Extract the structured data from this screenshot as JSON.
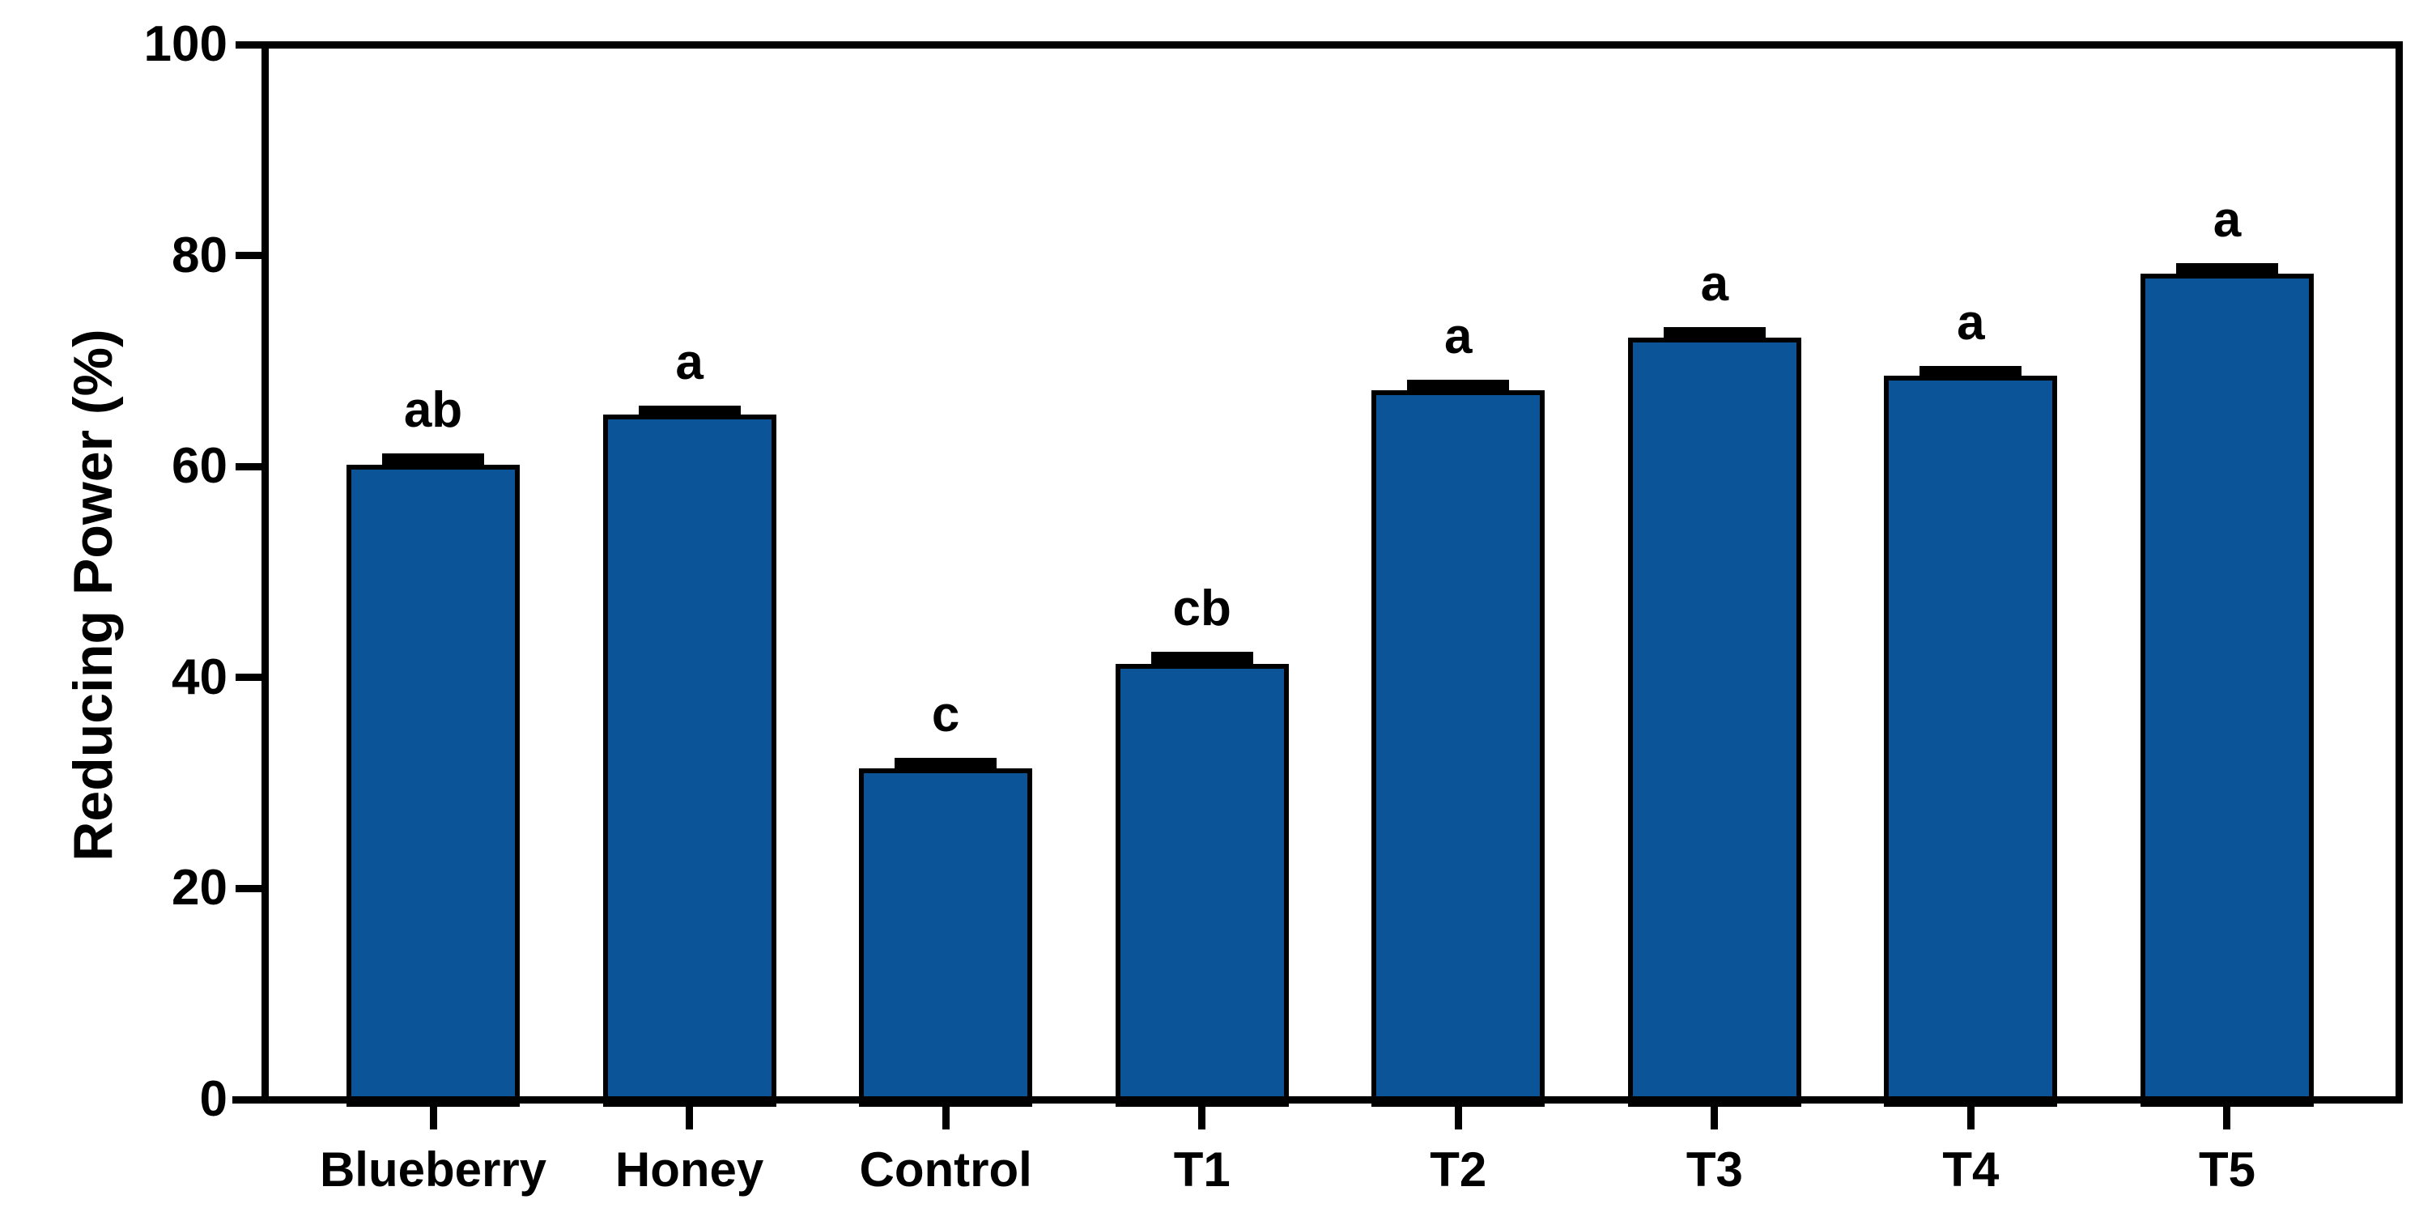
{
  "figure": {
    "background_color": "#ffffff"
  },
  "chart_data": {
    "type": "bar",
    "title": "",
    "xlabel": "",
    "ylabel": "Reducing Power (%)",
    "ylim": [
      0,
      100
    ],
    "yticks": [
      0,
      20,
      40,
      60,
      80,
      100
    ],
    "grid": false,
    "legend": null,
    "frame": "full-box",
    "categories": [
      "Blueberry",
      "Honey",
      "Control",
      "T1",
      "T2",
      "T3",
      "T4",
      "T5"
    ],
    "values": [
      60.2,
      64.9,
      31.4,
      41.3,
      67.2,
      72.2,
      68.6,
      78.3
    ],
    "errors": [
      0.7,
      0.6,
      0.7,
      0.8,
      0.7,
      0.7,
      0.6,
      0.7
    ],
    "significance_letters": [
      "ab",
      "a",
      "c",
      "cb",
      "a",
      "a",
      "a",
      "a"
    ],
    "bar_fill_color": "#0C5498",
    "bar_outline_color": "#000000",
    "error_bar_color": "#000000",
    "axis_color": "#000000",
    "text_color": "#000000"
  }
}
